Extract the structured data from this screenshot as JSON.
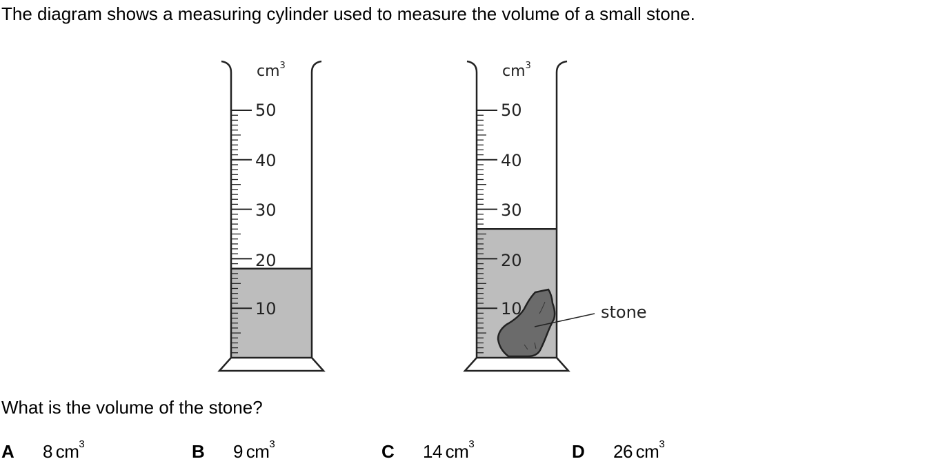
{
  "intro_text": "The diagram shows a measuring cylinder used to measure the volume of a small stone.",
  "question_text": "What is the volume of the stone?",
  "cylinders": [
    {
      "unit": "cm",
      "unit_power": "3",
      "scale_labels": [
        "50",
        "40",
        "30",
        "20",
        "10"
      ],
      "water_level_cm3": 18
    },
    {
      "unit": "cm",
      "unit_power": "3",
      "scale_labels": [
        "50",
        "40",
        "30",
        "20",
        "10"
      ],
      "water_level_cm3": 26,
      "stone_label": "stone"
    }
  ],
  "options": [
    {
      "letter": "A",
      "value": "8",
      "unit": "cm",
      "power": "3"
    },
    {
      "letter": "B",
      "value": "9",
      "unit": "cm",
      "power": "3"
    },
    {
      "letter": "C",
      "value": "14",
      "unit": "cm",
      "power": "3"
    },
    {
      "letter": "D",
      "value": "26",
      "unit": "cm",
      "power": "3"
    }
  ],
  "colors": {
    "water": "#bdbdbd",
    "stone": "#6b6b6b",
    "outline": "#222222"
  }
}
